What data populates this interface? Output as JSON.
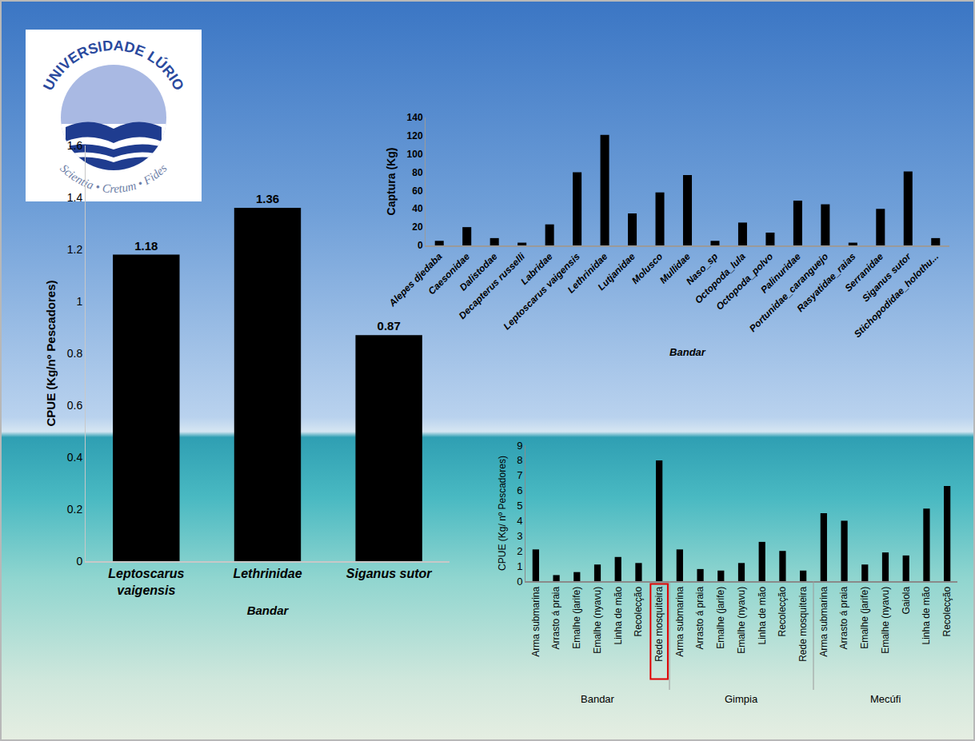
{
  "logo": {
    "name": "UNIVERSIDADE LÚRIO",
    "motto": "Scientia • Cretum • Fides"
  },
  "chart_data": [
    {
      "type": "bar",
      "xlabel": "Bandar",
      "ylabel": "Captura (Kg)",
      "categories": [
        "Alepes djedaba",
        "Caesonidae",
        "Dalistodae",
        "Decapterus russelli",
        "Labridae",
        "Leptoscarus vaigensis",
        "Lethrinidae",
        "Lutjanidae",
        "Molusco",
        "Mullidae",
        "Naso_sp",
        "Octopoda_lula",
        "Octopoda_polvo",
        "Palinuridae",
        "Portunidae_caranguejo",
        "Rasyatidae_raias",
        "Serranidae",
        "Siganus sutor",
        "Stichopodidae_holothu..."
      ],
      "values": [
        5,
        20,
        8,
        3,
        23,
        80,
        121,
        35,
        58,
        77,
        5,
        25,
        14,
        49,
        45,
        3,
        40,
        81,
        8
      ],
      "color": "#000000",
      "ylim": [
        0,
        140
      ],
      "yticks": [
        0,
        20,
        40,
        60,
        80,
        100,
        120,
        140
      ],
      "grid": false
    },
    {
      "type": "bar",
      "xlabel": "Bandar",
      "ylabel": "CPUE (Kg/nº Pescadores)",
      "categories": [
        "Leptoscarus vaigensis",
        "Lethrinidae",
        "Siganus sutor"
      ],
      "values": [
        1.18,
        1.36,
        0.87
      ],
      "color": "#000000",
      "data_labels": true,
      "ylim": [
        0,
        1.6
      ],
      "yticks": [
        0,
        0.2,
        0.4,
        0.6,
        0.8,
        1,
        1.2,
        1.4,
        1.6
      ],
      "grid": false
    },
    {
      "type": "bar",
      "ylabel": "CPUE (Kg/ nº Pescadores)",
      "categories": [
        [
          "Bandar",
          "Arma submarina"
        ],
        [
          "Bandar",
          "Arrasto á praia"
        ],
        [
          "Bandar",
          "Emalhe (jarife)"
        ],
        [
          "Bandar",
          "Emalhe (nyavu)"
        ],
        [
          "Bandar",
          "Linha de mão"
        ],
        [
          "Bandar",
          "Recolecção"
        ],
        [
          "Bandar",
          "Rede mosquiteira"
        ],
        [
          "Gimpia",
          "Arma submarina"
        ],
        [
          "Gimpia",
          "Arrasto á praia"
        ],
        [
          "Gimpia",
          "Emalhe (jarife)"
        ],
        [
          "Gimpia",
          "Emalhe (nyavu)"
        ],
        [
          "Gimpia",
          "Linha de mão"
        ],
        [
          "Gimpia",
          "Recolecção"
        ],
        [
          "Gimpia",
          "Rede mosquiteira"
        ],
        [
          "Mecúfi",
          "Arma submarina"
        ],
        [
          "Mecúfi",
          "Arrasto á praia"
        ],
        [
          "Mecúfi",
          "Emalhe (jarife)"
        ],
        [
          "Mecúfi",
          "Emalhe (nyavu)"
        ],
        [
          "Mecúfi",
          "Gaiola"
        ],
        [
          "Mecúfi",
          "Linha de mão"
        ],
        [
          "Mecúfi",
          "Recolecção"
        ]
      ],
      "values": [
        2.1,
        0.4,
        0.6,
        1.1,
        1.6,
        1.2,
        8.0,
        2.1,
        0.8,
        0.7,
        1.2,
        2.6,
        2.0,
        0.7,
        4.5,
        4.0,
        1.1,
        1.9,
        1.7,
        4.8,
        6.3
      ],
      "color": "#000000",
      "ylim": [
        0,
        9
      ],
      "yticks": [
        0,
        1,
        2,
        3,
        4,
        5,
        6,
        7,
        8,
        9
      ],
      "grid": false
    }
  ]
}
